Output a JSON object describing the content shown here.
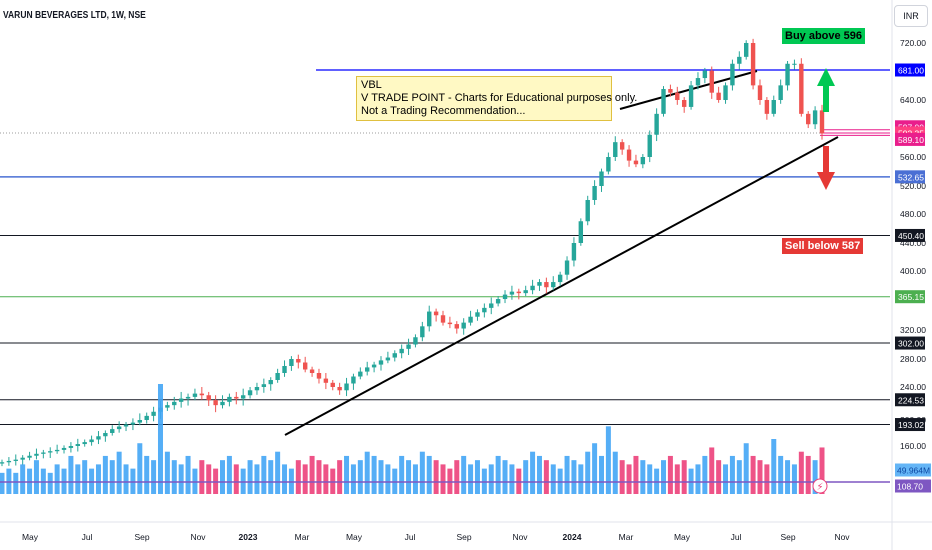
{
  "header": {
    "title": "VARUN BEVERAGES LTD, 1W, NSE",
    "currency": "INR"
  },
  "note": {
    "line1": "VBL",
    "line2": "V TRADE POINT - Charts for Educational purposes only.",
    "line3": "Not a Trading Recommendation..."
  },
  "tags": {
    "buy": "Buy above 596",
    "sell": "Sell below 587"
  },
  "colors": {
    "up": "#26a69a",
    "down": "#ef5350",
    "vol_up": "#42a5f5",
    "vol_down": "#ec407a",
    "resistance": "#0000ff",
    "support": "#4a6fd4"
  },
  "chart_data": {
    "type": "candlestick",
    "symbol": "VARUN BEVERAGES LTD",
    "timeframe": "1W",
    "exchange": "NSE",
    "currency": "INR",
    "y_ticks": [
      720.0,
      640.0,
      560.0,
      520.0,
      480.0,
      440.0,
      400.0,
      320.0,
      280.0,
      240.0,
      200.0,
      160.0
    ],
    "x_ticks": [
      "May",
      "Jul",
      "Sep",
      "Nov",
      "2023",
      "Mar",
      "May",
      "Jul",
      "Sep",
      "Nov",
      "2024",
      "Mar",
      "May",
      "Jul",
      "Sep",
      "Nov"
    ],
    "closes": [
      135,
      137,
      139,
      142,
      145,
      148,
      150,
      152,
      154,
      157,
      160,
      163,
      166,
      170,
      175,
      180,
      186,
      190,
      193,
      196,
      200,
      205,
      210,
      215,
      218,
      222,
      226,
      228,
      232,
      230,
      224,
      218,
      222,
      228,
      226,
      230,
      236,
      240,
      244,
      250,
      260,
      270,
      280,
      275,
      265,
      260,
      252,
      246,
      240,
      236,
      245,
      255,
      262,
      268,
      272,
      278,
      282,
      288,
      294,
      300,
      310,
      325,
      345,
      340,
      330,
      328,
      322,
      330,
      338,
      344,
      350,
      356,
      362,
      368,
      372,
      370,
      374,
      380,
      385,
      378,
      385,
      395,
      415,
      440,
      470,
      500,
      520,
      540,
      560,
      580,
      570,
      555,
      550,
      560,
      590,
      620,
      655,
      650,
      640,
      630,
      660,
      670,
      680,
      650,
      640,
      660,
      690,
      700,
      720,
      660,
      640,
      620,
      640,
      660,
      690,
      690,
      620,
      605,
      625,
      592
    ],
    "volumes": [
      5,
      6,
      5,
      7,
      6,
      8,
      6,
      5,
      7,
      6,
      9,
      7,
      8,
      6,
      7,
      9,
      8,
      10,
      7,
      6,
      12,
      9,
      8,
      26,
      10,
      8,
      7,
      9,
      6,
      8,
      7,
      6,
      8,
      9,
      7,
      6,
      8,
      7,
      9,
      8,
      10,
      7,
      6,
      8,
      7,
      9,
      8,
      7,
      6,
      8,
      9,
      7,
      8,
      10,
      9,
      8,
      7,
      6,
      9,
      8,
      7,
      10,
      9,
      8,
      7,
      6,
      8,
      9,
      7,
      8,
      6,
      7,
      9,
      8,
      7,
      6,
      8,
      10,
      9,
      8,
      7,
      6,
      9,
      8,
      7,
      10,
      12,
      9,
      16,
      10,
      8,
      7,
      9,
      8,
      7,
      6,
      8,
      9,
      7,
      8,
      6,
      7,
      9,
      11,
      8,
      7,
      9,
      8,
      12,
      9,
      8,
      7,
      13,
      9,
      8,
      7,
      10,
      9,
      8,
      11
    ],
    "horizontal_levels": [
      {
        "label": "681.00",
        "price": 681.0
      },
      {
        "label": "597.00",
        "price": 597.0
      },
      {
        "label": "592.35",
        "price": 592.35
      },
      {
        "label": "589.10",
        "price": 589.1
      },
      {
        "label": "532.65",
        "price": 532.65
      },
      {
        "label": "450.40",
        "price": 450.4
      },
      {
        "label": "365.15",
        "price": 365.15
      },
      {
        "label": "302.00",
        "price": 302.0
      },
      {
        "label": "224.53",
        "price": 224.53
      },
      {
        "label": "193.02",
        "price": 193.02
      }
    ],
    "volume_labels": [
      "49.964M",
      "108.70"
    ]
  }
}
